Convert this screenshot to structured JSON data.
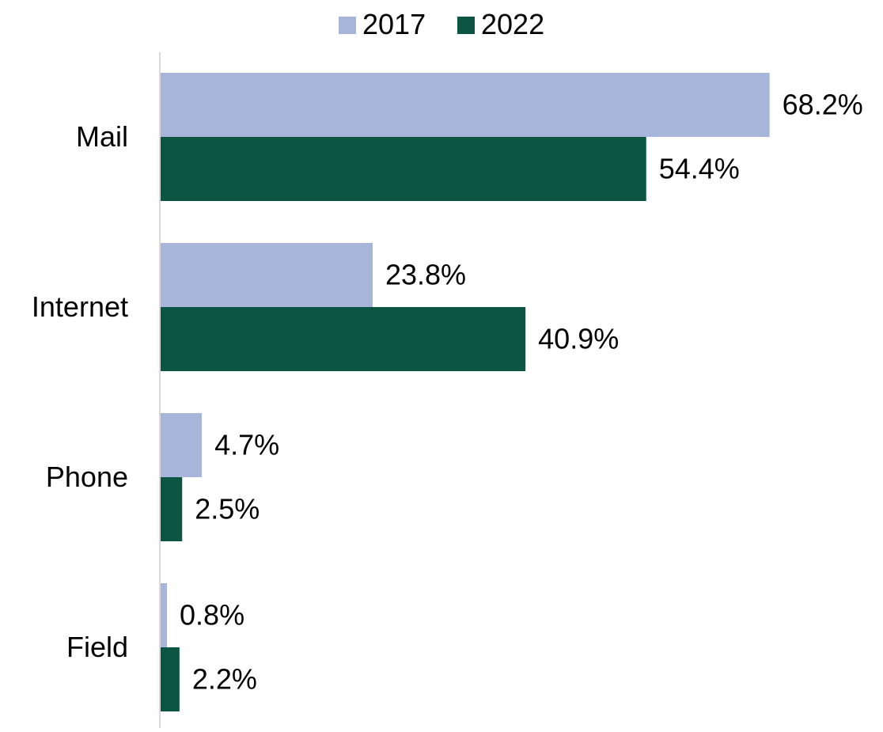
{
  "chart_data": {
    "type": "bar",
    "orientation": "horizontal",
    "title": "",
    "xlabel": "",
    "ylabel": "",
    "categories": [
      "Mail",
      "Internet",
      "Phone",
      "Field"
    ],
    "series": [
      {
        "name": "2017",
        "color": "#a8b5da",
        "values": [
          68.2,
          23.8,
          4.7,
          0.8
        ],
        "labels": [
          "68.2%",
          "23.8%",
          "4.7%",
          "0.8%"
        ]
      },
      {
        "name": "2022",
        "color": "#0c5542",
        "values": [
          54.4,
          40.9,
          2.5,
          2.2
        ],
        "labels": [
          "54.4%",
          "40.9%",
          "2.5%",
          "2.2%"
        ]
      }
    ],
    "xlim": [
      0,
      100
    ],
    "value_unit": "%",
    "grid": false,
    "legend_position": "top",
    "axis_line_color": "#d9d9d9"
  }
}
